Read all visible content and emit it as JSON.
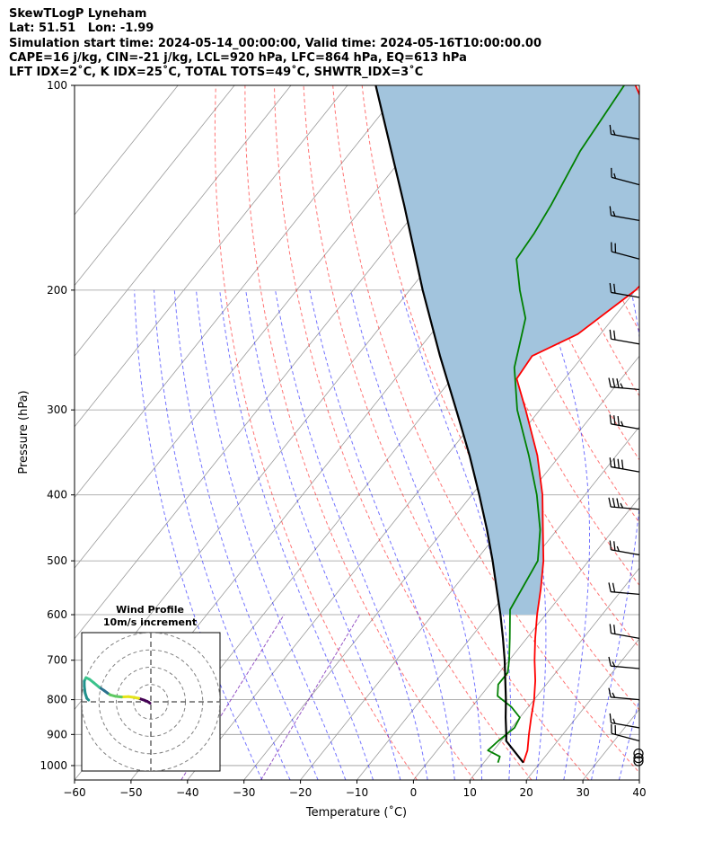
{
  "header": {
    "line1": "SkewTLogP Lyneham",
    "line2": "Lat: 51.51   Lon: -1.99",
    "line3": "Simulation start time: 2024-05-14_00:00:00, Valid time: 2024-05-16T10:00:00.00",
    "line4": "CAPE=16 j/kg, CIN=-21 j/kg, LCL=920 hPa, LFC=864 hPa, EQ=613 hPa",
    "line5": "LFT IDX=2˚C, K IDX=25˚C, TOTAL TOTS=49˚C, SHWTR_IDX=3˚C"
  },
  "colors": {
    "temperature": "#ff0000",
    "dewpoint": "#008000",
    "parcel": "#000000",
    "cape_fill": "#a2c4dd",
    "dry_adiabat": "#ff0000",
    "moist_adiabat": "#0000ff",
    "mixing_ratio": "#6a0dad",
    "isotherm": "#999999",
    "hodo_ring": "#808080"
  },
  "chart_data": {
    "type": "skew-t",
    "xlabel": "Temperature (˚C)",
    "ylabel": "Pressure (hPa)",
    "xlim": [
      -60,
      40
    ],
    "ylim_hpa": [
      1050,
      100
    ],
    "x_ticks": [
      -60,
      -50,
      -40,
      -30,
      -20,
      -10,
      0,
      10,
      20,
      30,
      40
    ],
    "x_tick_labels": [
      "−60",
      "−50",
      "−40",
      "−30",
      "−20",
      "−10",
      "0",
      "10",
      "20",
      "30",
      "40"
    ],
    "y_ticks": [
      100,
      200,
      300,
      400,
      500,
      600,
      700,
      800,
      900,
      1000
    ],
    "isotherms_c": [
      -140,
      -130,
      -120,
      -110,
      -100,
      -90,
      -80,
      -70,
      -60,
      -50,
      -40,
      -30,
      -20,
      -10,
      0,
      10,
      20,
      30,
      40
    ],
    "dry_adiabats_theta_k": [
      270,
      280,
      290,
      300,
      310,
      320,
      330,
      340,
      350,
      360,
      370,
      380,
      390,
      400,
      410,
      420,
      430,
      440,
      450,
      460,
      470,
      480,
      490,
      500
    ],
    "moist_adiabats_c": [
      -30,
      -25,
      -20,
      -15,
      -10,
      -5,
      0,
      5,
      10,
      15,
      20,
      25,
      30,
      35
    ],
    "mixing_ratio_lines_gkg": [
      0.1,
      0.4
    ],
    "temperature_profile": [
      {
        "p": 990,
        "t": 17.0
      },
      {
        "p": 950,
        "t": 16.0
      },
      {
        "p": 900,
        "t": 14.0
      },
      {
        "p": 850,
        "t": 12.0
      },
      {
        "p": 800,
        "t": 10.0
      },
      {
        "p": 750,
        "t": 7.5
      },
      {
        "p": 700,
        "t": 4.5
      },
      {
        "p": 650,
        "t": 1.5
      },
      {
        "p": 600,
        "t": -1.5
      },
      {
        "p": 550,
        "t": -4.5
      },
      {
        "p": 500,
        "t": -8.0
      },
      {
        "p": 450,
        "t": -12.5
      },
      {
        "p": 400,
        "t": -17.5
      },
      {
        "p": 350,
        "t": -24.0
      },
      {
        "p": 300,
        "t": -32.5
      },
      {
        "p": 270,
        "t": -38.5
      },
      {
        "p": 250,
        "t": -39.0
      },
      {
        "p": 232,
        "t": -34.0
      },
      {
        "p": 200,
        "t": -30.0
      },
      {
        "p": 180,
        "t": -29.0
      },
      {
        "p": 165,
        "t": -29.0
      },
      {
        "p": 150,
        "t": -33.0
      },
      {
        "p": 140,
        "t": -37.0
      },
      {
        "p": 130,
        "t": -41.0
      },
      {
        "p": 115,
        "t": -50.0
      },
      {
        "p": 100,
        "t": -59.0
      }
    ],
    "dewpoint_profile": [
      {
        "p": 990,
        "t": 12.5
      },
      {
        "p": 970,
        "t": 12.0
      },
      {
        "p": 950,
        "t": 9.0
      },
      {
        "p": 920,
        "t": 9.5
      },
      {
        "p": 880,
        "t": 10.5
      },
      {
        "p": 850,
        "t": 10.0
      },
      {
        "p": 820,
        "t": 7.0
      },
      {
        "p": 790,
        "t": 3.0
      },
      {
        "p": 760,
        "t": 1.5
      },
      {
        "p": 730,
        "t": 1.5
      },
      {
        "p": 700,
        "t": 0.0
      },
      {
        "p": 650,
        "t": -3.0
      },
      {
        "p": 590,
        "t": -7.0
      },
      {
        "p": 500,
        "t": -9.0
      },
      {
        "p": 450,
        "t": -13.0
      },
      {
        "p": 400,
        "t": -18.5
      },
      {
        "p": 350,
        "t": -25.5
      },
      {
        "p": 300,
        "t": -34.0
      },
      {
        "p": 260,
        "t": -40.5
      },
      {
        "p": 220,
        "t": -45.5
      },
      {
        "p": 200,
        "t": -50.5
      },
      {
        "p": 180,
        "t": -55.5
      },
      {
        "p": 165,
        "t": -56.0
      },
      {
        "p": 150,
        "t": -57.0
      },
      {
        "p": 125,
        "t": -59.5
      },
      {
        "p": 100,
        "t": -61.0
      }
    ],
    "parcel_profile": [
      {
        "p": 990,
        "t": 17.0
      },
      {
        "p": 920,
        "t": 10.9
      },
      {
        "p": 900,
        "t": 10.0
      },
      {
        "p": 850,
        "t": 7.5
      },
      {
        "p": 800,
        "t": 5.0
      },
      {
        "p": 750,
        "t": 2.2
      },
      {
        "p": 700,
        "t": -0.8
      },
      {
        "p": 650,
        "t": -4.2
      },
      {
        "p": 600,
        "t": -8.0
      },
      {
        "p": 550,
        "t": -12.3
      },
      {
        "p": 500,
        "t": -17.0
      },
      {
        "p": 450,
        "t": -22.4
      },
      {
        "p": 400,
        "t": -28.7
      },
      {
        "p": 350,
        "t": -36.0
      },
      {
        "p": 300,
        "t": -44.8
      },
      {
        "p": 250,
        "t": -55.3
      },
      {
        "p": 200,
        "t": -67.7
      },
      {
        "p": 150,
        "t": -83.0
      },
      {
        "p": 100,
        "t": -105.0
      }
    ],
    "cape_regions": [
      {
        "from_hpa": 600,
        "to_hpa": 100
      }
    ],
    "wind_barbs": [
      {
        "p": 985,
        "speed_kt": 0,
        "dir_deg": 0
      },
      {
        "p": 975,
        "speed_kt": 0,
        "dir_deg": 0
      },
      {
        "p": 960,
        "speed_kt": 0,
        "dir_deg": 0
      },
      {
        "p": 920,
        "speed_kt": 20,
        "dir_deg": 285
      },
      {
        "p": 880,
        "speed_kt": 15,
        "dir_deg": 280
      },
      {
        "p": 800,
        "speed_kt": 15,
        "dir_deg": 275
      },
      {
        "p": 720,
        "speed_kt": 15,
        "dir_deg": 275
      },
      {
        "p": 650,
        "speed_kt": 20,
        "dir_deg": 280
      },
      {
        "p": 560,
        "speed_kt": 20,
        "dir_deg": 275
      },
      {
        "p": 490,
        "speed_kt": 25,
        "dir_deg": 280
      },
      {
        "p": 420,
        "speed_kt": 35,
        "dir_deg": 275
      },
      {
        "p": 370,
        "speed_kt": 40,
        "dir_deg": 280
      },
      {
        "p": 320,
        "speed_kt": 35,
        "dir_deg": 280
      },
      {
        "p": 280,
        "speed_kt": 35,
        "dir_deg": 275
      },
      {
        "p": 240,
        "speed_kt": 20,
        "dir_deg": 280
      },
      {
        "p": 205,
        "speed_kt": 20,
        "dir_deg": 280
      },
      {
        "p": 180,
        "speed_kt": 20,
        "dir_deg": 285
      },
      {
        "p": 158,
        "speed_kt": 15,
        "dir_deg": 280
      },
      {
        "p": 140,
        "speed_kt": 15,
        "dir_deg": 285
      },
      {
        "p": 120,
        "speed_kt": 15,
        "dir_deg": 280
      }
    ],
    "hodograph": {
      "title_line1": "Wind Profile",
      "title_line2": "10m/s increment",
      "rings_ms": [
        10,
        20,
        30,
        40
      ],
      "range_ms": 40,
      "trace": [
        {
          "u": -0.5,
          "v": -0.8
        },
        {
          "u": -2.0,
          "v": 0.2
        },
        {
          "u": -4.0,
          "v": 1.0
        },
        {
          "u": -7.0,
          "v": 2.0
        },
        {
          "u": -10.0,
          "v": 2.6
        },
        {
          "u": -13.0,
          "v": 3.0
        },
        {
          "u": -17.0,
          "v": 2.8
        },
        {
          "u": -20.5,
          "v": 3.2
        },
        {
          "u": -23.5,
          "v": 4.0
        },
        {
          "u": -25.0,
          "v": 5.0
        },
        {
          "u": -27.0,
          "v": 6.5
        },
        {
          "u": -30.0,
          "v": 8.5
        },
        {
          "u": -33.0,
          "v": 11.0
        },
        {
          "u": -35.5,
          "v": 13.0
        },
        {
          "u": -37.5,
          "v": 14.0
        },
        {
          "u": -38.5,
          "v": 12.0
        },
        {
          "u": -38.5,
          "v": 9.0
        },
        {
          "u": -38.0,
          "v": 5.0
        },
        {
          "u": -37.0,
          "v": 2.0
        },
        {
          "u": -36.0,
          "v": 1.0
        }
      ]
    }
  }
}
